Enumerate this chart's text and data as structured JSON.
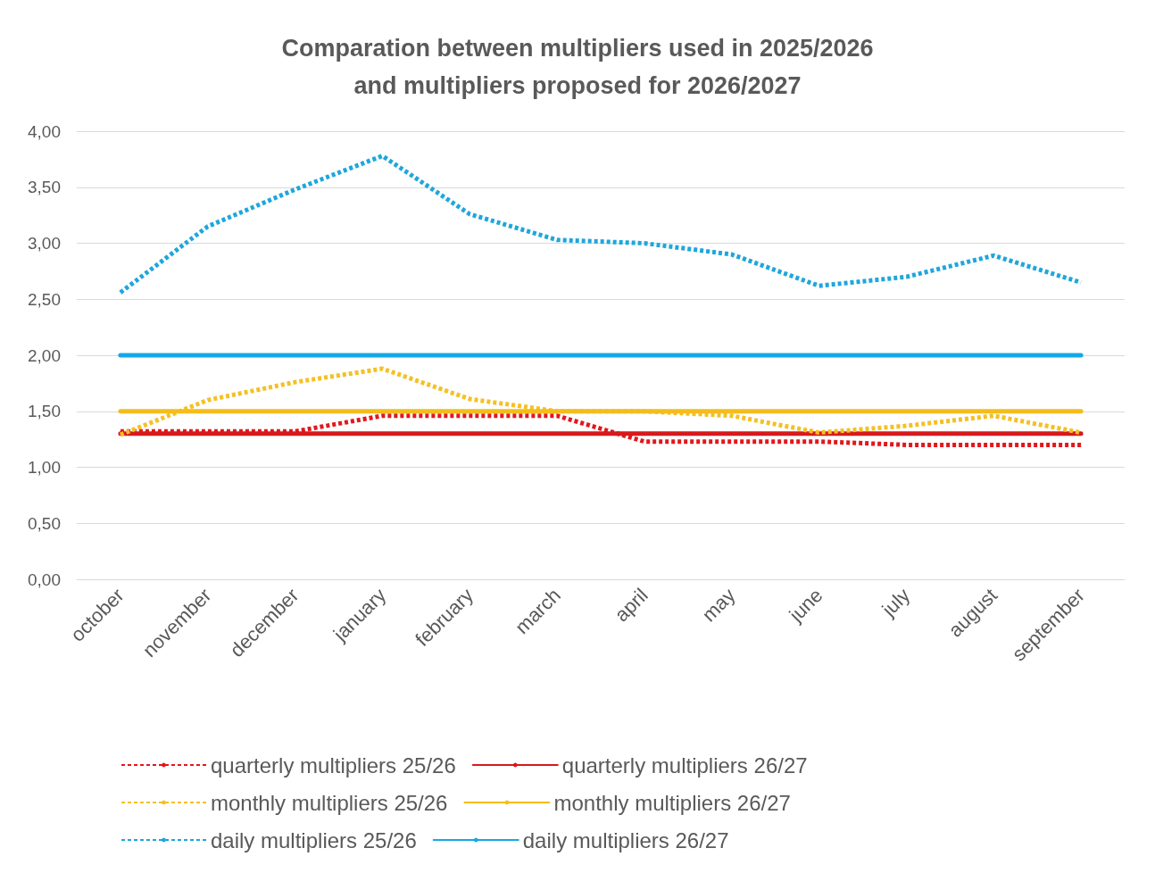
{
  "chart_data": {
    "type": "line",
    "title": "Comparation between multipliers used in 2025/2026\nand multipliers proposed for 2026/2027",
    "categories": [
      "october",
      "november",
      "december",
      "january",
      "february",
      "march",
      "april",
      "may",
      "june",
      "july",
      "august",
      "september"
    ],
    "series": [
      {
        "name": "quarterly multipliers 25/26",
        "color": "#e3171b",
        "line_style": "dashed",
        "values": [
          1.32,
          1.32,
          1.32,
          1.46,
          1.46,
          1.46,
          1.23,
          1.23,
          1.23,
          1.2,
          1.2,
          1.2
        ]
      },
      {
        "name": "quarterly multipliers 26/27",
        "color": "#d7191c",
        "line_style": "solid",
        "values": [
          1.3,
          1.3,
          1.3,
          1.3,
          1.3,
          1.3,
          1.3,
          1.3,
          1.3,
          1.3,
          1.3,
          1.3
        ]
      },
      {
        "name": "monthly multipliers 25/26",
        "color": "#f5c024",
        "line_style": "dashed",
        "values": [
          1.29,
          1.6,
          1.76,
          1.88,
          1.61,
          1.5,
          1.5,
          1.46,
          1.31,
          1.37,
          1.46,
          1.31
        ]
      },
      {
        "name": "monthly multipliers 26/27",
        "color": "#f3bd1c",
        "line_style": "solid",
        "values": [
          1.5,
          1.5,
          1.5,
          1.5,
          1.5,
          1.5,
          1.5,
          1.5,
          1.5,
          1.5,
          1.5,
          1.5
        ]
      },
      {
        "name": "daily multipliers 25/26",
        "color": "#1ea6dc",
        "line_style": "dashed",
        "values": [
          2.56,
          3.15,
          3.48,
          3.78,
          3.26,
          3.03,
          3.0,
          2.9,
          2.62,
          2.7,
          2.89,
          2.65
        ]
      },
      {
        "name": "daily multipliers 26/27",
        "color": "#12a9e6",
        "line_style": "solid",
        "values": [
          2.0,
          2.0,
          2.0,
          2.0,
          2.0,
          2.0,
          2.0,
          2.0,
          2.0,
          2.0,
          2.0,
          2.0
        ]
      }
    ],
    "ylim": [
      0,
      4
    ],
    "yticks": [
      {
        "value": 0,
        "label": "0,00"
      },
      {
        "value": 0.5,
        "label": "0,50"
      },
      {
        "value": 1,
        "label": "1,00"
      },
      {
        "value": 1.5,
        "label": "1,50"
      },
      {
        "value": 2,
        "label": "2,00"
      },
      {
        "value": 2.5,
        "label": "2,50"
      },
      {
        "value": 3,
        "label": "3,00"
      },
      {
        "value": 3.5,
        "label": "3,50"
      },
      {
        "value": 4,
        "label": "4,00"
      }
    ],
    "grid": "y",
    "legend": "bottom",
    "marker": "none"
  }
}
